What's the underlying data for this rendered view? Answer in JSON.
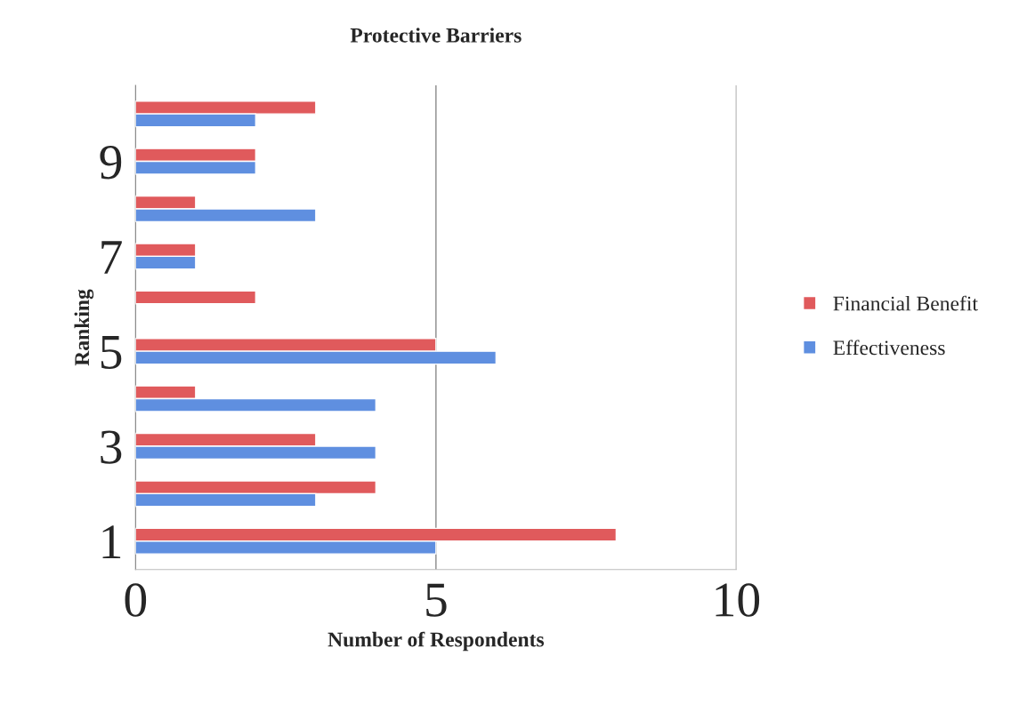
{
  "chart_data": {
    "type": "bar",
    "orientation": "horizontal",
    "title": "Protective Barriers",
    "xlabel": "Number of Respondents",
    "ylabel": "Ranking",
    "categories": [
      null,
      "9",
      null,
      "7",
      null,
      "5",
      null,
      "3",
      null,
      "1"
    ],
    "series": [
      {
        "name": "Financial Benefit",
        "color": "#e05a5c",
        "values": [
          3,
          2,
          1,
          1,
          2,
          5,
          1,
          3,
          4,
          8
        ]
      },
      {
        "name": "Effectiveness",
        "color": "#5f8fe0",
        "values": [
          2,
          2,
          3,
          1,
          null,
          6,
          4,
          4,
          3,
          5
        ]
      }
    ],
    "xlim": [
      0,
      10
    ],
    "xticks": [
      0,
      5,
      10
    ],
    "grid": "x",
    "legend": "right"
  }
}
